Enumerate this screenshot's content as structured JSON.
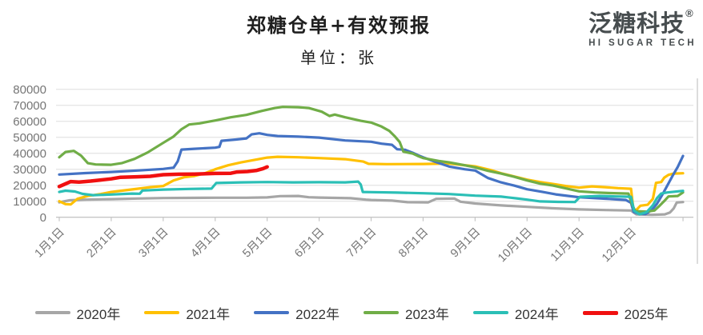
{
  "header": {
    "title": "郑糖仓单+有效预报",
    "subtitle": "单位：张",
    "logo_text": "泛糖科技",
    "logo_registered": "®",
    "logo_subtext": "HI SUGAR TECH"
  },
  "chart_data": {
    "type": "line",
    "title": "郑糖仓单+有效预报",
    "unit_label": "单位：张",
    "grid": true,
    "legend_position": "bottom",
    "ylim": [
      0,
      80000
    ],
    "y_ticks": [
      0,
      10000,
      20000,
      30000,
      40000,
      50000,
      60000,
      70000,
      80000
    ],
    "x_tick_labels": [
      "1月1日",
      "2月1日",
      "3月1日",
      "4月1日",
      "5月1日",
      "6月1日",
      "7月1日",
      "8月1日",
      "9月1日",
      "10月1日",
      "11月1日",
      "12月1日"
    ],
    "x_note": "points are [t, value]; t in month units: 0 = 1月1日 … 11 = 12月1日, 12 = year end",
    "axis_color": "#c6c6c6",
    "grid_color": "#dedede",
    "tick_text_color": "#757575",
    "series": [
      {
        "name": "2020年",
        "color": "#a6a6a6",
        "width": 3.2,
        "points": [
          [
            0,
            9300
          ],
          [
            0.2,
            10600
          ],
          [
            0.5,
            11000
          ],
          [
            1,
            11300
          ],
          [
            1.5,
            11700
          ],
          [
            2,
            12000
          ],
          [
            2.5,
            12100
          ],
          [
            3,
            12200
          ],
          [
            3.6,
            12200
          ],
          [
            4,
            12400
          ],
          [
            4.25,
            13200
          ],
          [
            4.6,
            13300
          ],
          [
            4.8,
            12500
          ],
          [
            5,
            12300
          ],
          [
            5.6,
            11900
          ],
          [
            5.9,
            11000
          ],
          [
            6,
            10800
          ],
          [
            6.4,
            10400
          ],
          [
            6.7,
            9400
          ],
          [
            7.1,
            9300
          ],
          [
            7.25,
            11500
          ],
          [
            7.6,
            11700
          ],
          [
            7.72,
            9700
          ],
          [
            8,
            8600
          ],
          [
            8.5,
            7400
          ],
          [
            9,
            6500
          ],
          [
            9.5,
            5600
          ],
          [
            10,
            4900
          ],
          [
            10.5,
            4500
          ],
          [
            11,
            4200
          ],
          [
            11.1,
            1800
          ],
          [
            11.4,
            1500
          ],
          [
            11.65,
            1800
          ],
          [
            11.75,
            3000
          ],
          [
            11.82,
            5500
          ],
          [
            11.88,
            9200
          ],
          [
            12,
            9500
          ]
        ]
      },
      {
        "name": "2021年",
        "color": "#ffc000",
        "width": 3.2,
        "points": [
          [
            0,
            10000
          ],
          [
            0.12,
            8200
          ],
          [
            0.22,
            8000
          ],
          [
            0.35,
            11500
          ],
          [
            0.55,
            13300
          ],
          [
            0.8,
            14500
          ],
          [
            1,
            15800
          ],
          [
            1.25,
            16800
          ],
          [
            1.5,
            17800
          ],
          [
            1.75,
            18800
          ],
          [
            2,
            19500
          ],
          [
            2.2,
            23000
          ],
          [
            2.4,
            25000
          ],
          [
            2.6,
            25800
          ],
          [
            2.8,
            27500
          ],
          [
            3,
            30000
          ],
          [
            3.25,
            32500
          ],
          [
            3.5,
            34300
          ],
          [
            3.75,
            35800
          ],
          [
            4,
            37300
          ],
          [
            4.2,
            37800
          ],
          [
            4.6,
            37500
          ],
          [
            5,
            37000
          ],
          [
            5.5,
            36300
          ],
          [
            5.85,
            34800
          ],
          [
            5.95,
            33400
          ],
          [
            6.3,
            33200
          ],
          [
            7,
            33300
          ],
          [
            7.5,
            33600
          ],
          [
            8,
            31800
          ],
          [
            8.3,
            29500
          ],
          [
            8.5,
            27500
          ],
          [
            8.75,
            25500
          ],
          [
            9,
            23500
          ],
          [
            9.25,
            22000
          ],
          [
            9.5,
            20800
          ],
          [
            9.75,
            19500
          ],
          [
            10,
            18500
          ],
          [
            10.25,
            19300
          ],
          [
            10.5,
            18800
          ],
          [
            10.75,
            18200
          ],
          [
            11,
            17800
          ],
          [
            11.04,
            6500
          ],
          [
            11.08,
            3800
          ],
          [
            11.18,
            7200
          ],
          [
            11.32,
            7800
          ],
          [
            11.42,
            11500
          ],
          [
            11.48,
            21500
          ],
          [
            11.58,
            22000
          ],
          [
            11.64,
            24800
          ],
          [
            11.72,
            26500
          ],
          [
            11.82,
            27300
          ],
          [
            12,
            27500
          ]
        ]
      },
      {
        "name": "2022年",
        "color": "#4472c4",
        "width": 3.2,
        "points": [
          [
            0,
            26700
          ],
          [
            0.5,
            27600
          ],
          [
            1,
            28300
          ],
          [
            1.5,
            29200
          ],
          [
            2,
            30200
          ],
          [
            2.2,
            31000
          ],
          [
            2.28,
            35000
          ],
          [
            2.35,
            42300
          ],
          [
            2.6,
            42800
          ],
          [
            3,
            43500
          ],
          [
            3.08,
            44000
          ],
          [
            3.12,
            47800
          ],
          [
            3.4,
            48600
          ],
          [
            3.6,
            49300
          ],
          [
            3.7,
            51800
          ],
          [
            3.85,
            52500
          ],
          [
            4,
            51500
          ],
          [
            4.2,
            50800
          ],
          [
            4.6,
            50400
          ],
          [
            5,
            49800
          ],
          [
            5.5,
            48000
          ],
          [
            6,
            47200
          ],
          [
            6.2,
            46000
          ],
          [
            6.4,
            45300
          ],
          [
            6.5,
            42500
          ],
          [
            6.65,
            42200
          ],
          [
            6.8,
            40300
          ],
          [
            6.9,
            38800
          ],
          [
            7,
            37500
          ],
          [
            7.25,
            34500
          ],
          [
            7.5,
            31700
          ],
          [
            7.8,
            30000
          ],
          [
            8,
            29200
          ],
          [
            8.25,
            24500
          ],
          [
            8.5,
            21800
          ],
          [
            8.75,
            19800
          ],
          [
            9,
            17500
          ],
          [
            9.3,
            15800
          ],
          [
            9.55,
            14300
          ],
          [
            9.8,
            13300
          ],
          [
            10,
            12500
          ],
          [
            10.5,
            11600
          ],
          [
            10.9,
            10800
          ],
          [
            11,
            9000
          ],
          [
            11.05,
            3300
          ],
          [
            11.15,
            2100
          ],
          [
            11.28,
            2000
          ],
          [
            11.4,
            4500
          ],
          [
            11.5,
            8500
          ],
          [
            11.6,
            14000
          ],
          [
            11.7,
            20000
          ],
          [
            11.8,
            26000
          ],
          [
            11.9,
            31500
          ],
          [
            12,
            38300
          ]
        ]
      },
      {
        "name": "2023年",
        "color": "#70ad47",
        "width": 3.2,
        "points": [
          [
            0,
            37500
          ],
          [
            0.12,
            40800
          ],
          [
            0.28,
            41500
          ],
          [
            0.42,
            38500
          ],
          [
            0.55,
            33800
          ],
          [
            0.7,
            33000
          ],
          [
            1,
            32800
          ],
          [
            1.2,
            33800
          ],
          [
            1.45,
            36500
          ],
          [
            1.7,
            40500
          ],
          [
            2,
            46500
          ],
          [
            2.2,
            50500
          ],
          [
            2.35,
            55000
          ],
          [
            2.5,
            58000
          ],
          [
            2.7,
            58700
          ],
          [
            3,
            60500
          ],
          [
            3.3,
            62500
          ],
          [
            3.6,
            64000
          ],
          [
            3.9,
            66500
          ],
          [
            4.15,
            68300
          ],
          [
            4.3,
            69000
          ],
          [
            4.6,
            68800
          ],
          [
            4.8,
            68300
          ],
          [
            5.05,
            66000
          ],
          [
            5.2,
            63300
          ],
          [
            5.3,
            64200
          ],
          [
            5.5,
            62500
          ],
          [
            5.8,
            60300
          ],
          [
            6,
            59200
          ],
          [
            6.2,
            56700
          ],
          [
            6.35,
            54000
          ],
          [
            6.45,
            50800
          ],
          [
            6.55,
            47000
          ],
          [
            6.62,
            41000
          ],
          [
            6.8,
            39800
          ],
          [
            6.9,
            38300
          ],
          [
            7,
            37000
          ],
          [
            7.3,
            35200
          ],
          [
            7.5,
            34300
          ],
          [
            7.75,
            32800
          ],
          [
            8,
            31200
          ],
          [
            8.25,
            29000
          ],
          [
            8.5,
            27300
          ],
          [
            8.75,
            25300
          ],
          [
            9,
            23000
          ],
          [
            9.25,
            21000
          ],
          [
            9.5,
            19800
          ],
          [
            9.75,
            18000
          ],
          [
            10,
            16200
          ],
          [
            10.3,
            15500
          ],
          [
            10.6,
            15100
          ],
          [
            10.95,
            14800
          ],
          [
            11.02,
            8000
          ],
          [
            11.08,
            3800
          ],
          [
            11.3,
            3500
          ],
          [
            11.45,
            4200
          ],
          [
            11.55,
            7200
          ],
          [
            11.65,
            10500
          ],
          [
            11.72,
            13000
          ],
          [
            11.9,
            13300
          ],
          [
            12,
            15500
          ]
        ]
      },
      {
        "name": "2024年",
        "color": "#2bbfb6",
        "width": 3.2,
        "points": [
          [
            0,
            15800
          ],
          [
            0.12,
            16600
          ],
          [
            0.3,
            16100
          ],
          [
            0.45,
            14600
          ],
          [
            0.65,
            13800
          ],
          [
            1,
            14200
          ],
          [
            1.4,
            14800
          ],
          [
            1.55,
            14700
          ],
          [
            1.6,
            16700
          ],
          [
            2,
            17300
          ],
          [
            2.5,
            17700
          ],
          [
            2.93,
            17900
          ],
          [
            3.02,
            21400
          ],
          [
            3.5,
            21800
          ],
          [
            4,
            22000
          ],
          [
            4.5,
            21800
          ],
          [
            5,
            21900
          ],
          [
            5.5,
            21800
          ],
          [
            5.75,
            22300
          ],
          [
            5.8,
            20500
          ],
          [
            5.84,
            15800
          ],
          [
            6,
            15700
          ],
          [
            6.5,
            15400
          ],
          [
            7,
            15000
          ],
          [
            7.5,
            14500
          ],
          [
            8,
            13500
          ],
          [
            8.5,
            12900
          ],
          [
            8.8,
            11800
          ],
          [
            9,
            11000
          ],
          [
            9.25,
            9900
          ],
          [
            9.6,
            9600
          ],
          [
            9.92,
            9500
          ],
          [
            10.02,
            12800
          ],
          [
            10.4,
            13300
          ],
          [
            10.7,
            13000
          ],
          [
            11,
            12800
          ],
          [
            11.06,
            4000
          ],
          [
            11.16,
            1800
          ],
          [
            11.3,
            3200
          ],
          [
            11.42,
            7500
          ],
          [
            11.5,
            12000
          ],
          [
            11.58,
            14800
          ],
          [
            11.7,
            15500
          ],
          [
            11.85,
            16000
          ],
          [
            12,
            16500
          ]
        ]
      },
      {
        "name": "2025年",
        "color": "#f01010",
        "width": 4.5,
        "points": [
          [
            0,
            19200
          ],
          [
            0.1,
            20600
          ],
          [
            0.22,
            22300
          ],
          [
            0.38,
            22000
          ],
          [
            0.6,
            22600
          ],
          [
            0.8,
            23300
          ],
          [
            1,
            24000
          ],
          [
            1.18,
            25000
          ],
          [
            1.5,
            25300
          ],
          [
            1.75,
            25600
          ],
          [
            2,
            26600
          ],
          [
            2.3,
            26900
          ],
          [
            2.6,
            27000
          ],
          [
            3,
            27400
          ],
          [
            3.3,
            27500
          ],
          [
            3.42,
            28300
          ],
          [
            3.62,
            28600
          ],
          [
            3.8,
            29300
          ],
          [
            3.92,
            30400
          ],
          [
            4,
            31500
          ]
        ]
      }
    ]
  }
}
